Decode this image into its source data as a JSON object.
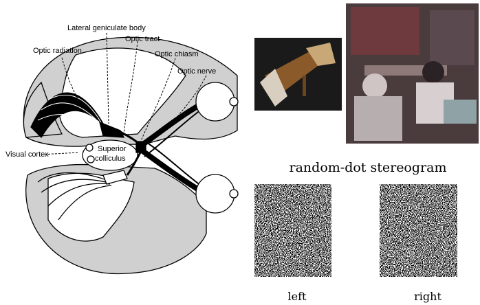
{
  "diagram": {
    "labels": {
      "lateral_geniculate_body": "Lateral geniculate body",
      "optic_tract": "Optic tract",
      "optic_radiation": "Optic radiation",
      "optic_chiasm": "Optic chiasm",
      "optic_nerve": "Optic nerve",
      "visual_cortex": "Visual cortex",
      "superior_colliculus": [
        "Superior",
        "colliculus"
      ]
    }
  },
  "stereogram": {
    "title": "random-dot stereogram",
    "left_label": "left",
    "right_label": "right"
  }
}
